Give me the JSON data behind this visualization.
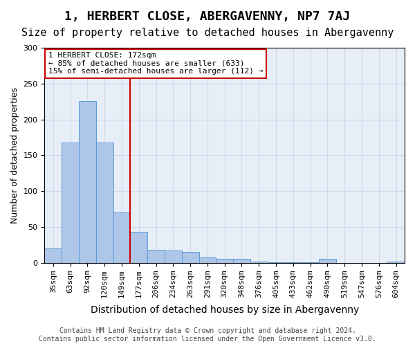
{
  "title": "1, HERBERT CLOSE, ABERGAVENNY, NP7 7AJ",
  "subtitle": "Size of property relative to detached houses in Abergavenny",
  "xlabel": "Distribution of detached houses by size in Abergavenny",
  "ylabel": "Number of detached properties",
  "categories": [
    "35sqm",
    "63sqm",
    "92sqm",
    "120sqm",
    "149sqm",
    "177sqm",
    "206sqm",
    "234sqm",
    "263sqm",
    "291sqm",
    "320sqm",
    "348sqm",
    "376sqm",
    "405sqm",
    "433sqm",
    "462sqm",
    "490sqm",
    "519sqm",
    "547sqm",
    "576sqm",
    "604sqm"
  ],
  "values": [
    20,
    168,
    226,
    168,
    70,
    43,
    18,
    17,
    15,
    7,
    5,
    5,
    2,
    1,
    1,
    1,
    5,
    0,
    0,
    0,
    2
  ],
  "bar_color": "#aec6e8",
  "bar_edge_color": "#5b9bd5",
  "property_label": "1 HERBERT CLOSE: 172sqm",
  "pct_smaller": 85,
  "n_smaller": 633,
  "pct_larger_semi": 15,
  "n_larger_semi": 112,
  "annotation_box_color": "#ffffff",
  "annotation_box_edge_color": "#cc0000",
  "grid_color": "#d0d8e8",
  "background_color": "#e8eef8",
  "ylim": [
    0,
    300
  ],
  "yticks": [
    0,
    50,
    100,
    150,
    200,
    250,
    300
  ],
  "footnote": "Contains HM Land Registry data © Crown copyright and database right 2024.\nContains public sector information licensed under the Open Government Licence v3.0.",
  "title_fontsize": 13,
  "subtitle_fontsize": 11,
  "xlabel_fontsize": 10,
  "ylabel_fontsize": 9,
  "tick_fontsize": 8,
  "annot_fontsize": 8,
  "footnote_fontsize": 7
}
